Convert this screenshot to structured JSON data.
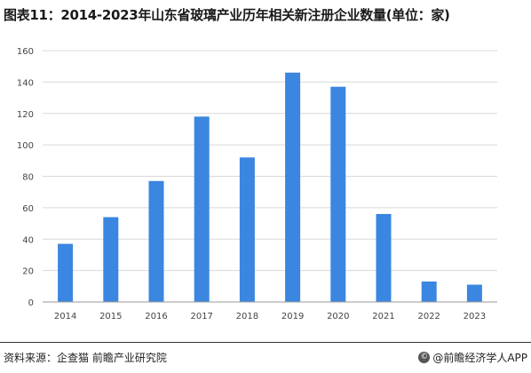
{
  "title": "图表11：2014-2023年山东省玻璃产业历年相关新注册企业数量(单位：家)",
  "footer": {
    "source": "资料来源：企查猫 前瞻产业研究院",
    "brand": "@前瞻经济学人APP",
    "brand_icon": "copyright-circle-icon"
  },
  "colors": {
    "bar": "#3a86e0",
    "grid": "#d9d9d9",
    "axis": "#999999"
  },
  "chart_data": {
    "type": "bar",
    "title": "图表11：2014-2023年山东省玻璃产业历年相关新注册企业数量(单位：家)",
    "categories": [
      "2014",
      "2015",
      "2016",
      "2017",
      "2018",
      "2019",
      "2020",
      "2021",
      "2022",
      "2023"
    ],
    "values": [
      37,
      54,
      77,
      118,
      92,
      146,
      137,
      56,
      13,
      11
    ],
    "yticks": [
      0,
      20,
      40,
      60,
      80,
      100,
      120,
      140,
      160
    ],
    "ylim": [
      0,
      160
    ],
    "xlabel": "",
    "ylabel": "",
    "grid": true,
    "legend": "none"
  }
}
